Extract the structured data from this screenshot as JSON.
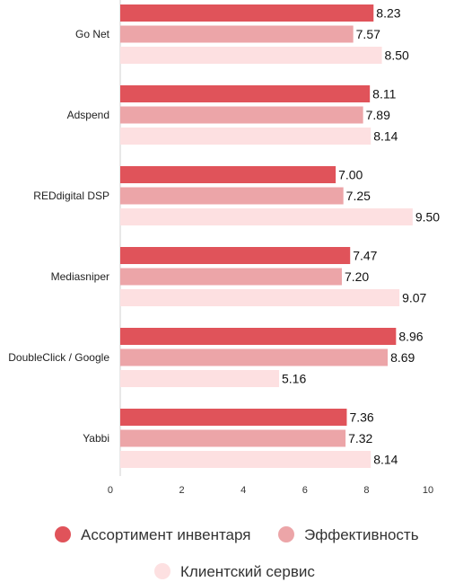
{
  "chart_data": {
    "type": "bar",
    "orientation": "horizontal",
    "categories": [
      "Go Net",
      "Adspend",
      "REDdigital DSP",
      "Mediasniper",
      "DoubleClick / Google",
      "Yabbi"
    ],
    "series": [
      {
        "name": "Ассортимент инвентаря",
        "color": "#e0535a",
        "values": [
          8.23,
          8.11,
          7.0,
          7.47,
          8.96,
          7.36
        ]
      },
      {
        "name": "Эффективность",
        "color": "#eca5a8",
        "values": [
          7.57,
          7.89,
          7.25,
          7.2,
          8.69,
          7.32
        ]
      },
      {
        "name": "Клиентский сервис",
        "color": "#fde0e1",
        "values": [
          8.5,
          8.14,
          9.5,
          9.07,
          5.16,
          8.14
        ]
      }
    ],
    "xlim": [
      0,
      10
    ],
    "xticks": [
      "0",
      "2",
      "4",
      "6",
      "8",
      "10"
    ],
    "value_labels": [
      [
        "8.23",
        "8.11",
        "7.00",
        "7.47",
        "8.96",
        "7.36"
      ],
      [
        "7.57",
        "7.89",
        "7.25",
        "7.20",
        "8.69",
        "7.32"
      ],
      [
        "8.50",
        "8.14",
        "9.50",
        "9.07",
        "5.16",
        "8.14"
      ]
    ],
    "grid": false,
    "legend_position": "bottom"
  }
}
